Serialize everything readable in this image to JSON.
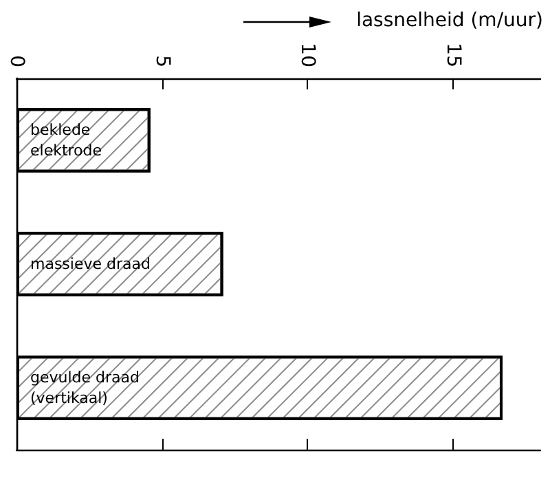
{
  "chart_data": {
    "type": "bar",
    "orientation": "horizontal",
    "xlabel": "lassnelheid (m/uur)",
    "categories": [
      "beklede\nelektrode",
      "massieve draad",
      "gevulde draad\n(vertikaal)"
    ],
    "values": [
      4.6,
      7.1,
      16.7
    ],
    "color": "#000000",
    "xlim": [
      0,
      18
    ],
    "xticks": [
      0,
      5,
      10,
      15
    ],
    "grid": false
  }
}
